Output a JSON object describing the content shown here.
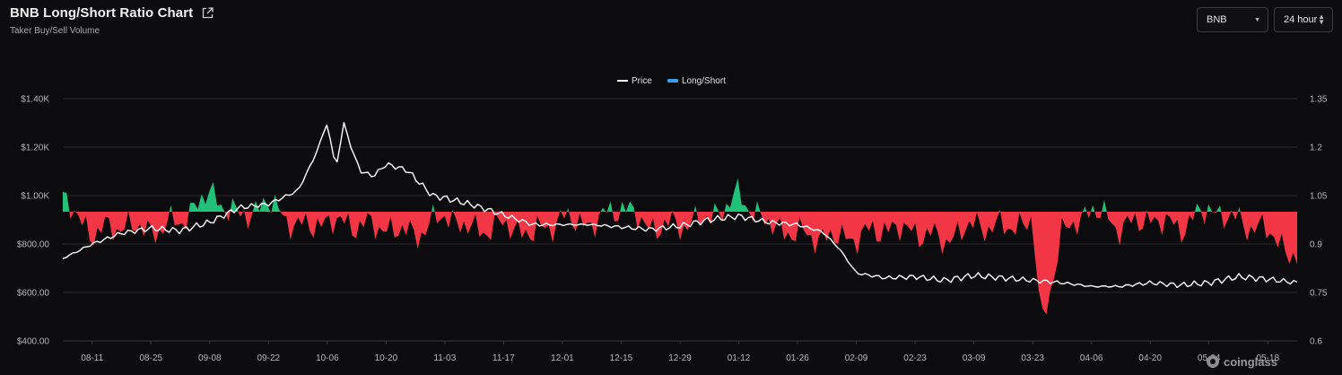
{
  "header": {
    "title": "BNB Long/Short Ratio Chart",
    "subtitle": "Taker Buy/Sell Volume",
    "external_link_icon": "external-link-icon"
  },
  "controls": {
    "symbol": {
      "value": "BNB",
      "icon": "chevron-down-icon"
    },
    "interval": {
      "value": "24 hour",
      "icon": "up-down-arrows-icon"
    }
  },
  "watermark": {
    "text": "coinglass"
  },
  "colors": {
    "background": "#0c0c0e",
    "price_line": "#ffffff",
    "long": "#21c17a",
    "short": "#f23645",
    "legend_ratio": "#3b9ee8",
    "grid": "#2a2a2f"
  },
  "chart_data": {
    "type": "area",
    "legend": [
      {
        "name": "Price",
        "marker": "line",
        "color": "#ffffff"
      },
      {
        "name": "Long/Short",
        "marker": "bar",
        "color": "#3b9ee8"
      }
    ],
    "legend_position": "top-center",
    "x_tick_labels": [
      "08-11",
      "08-25",
      "09-08",
      "09-22",
      "10-06",
      "10-20",
      "11-03",
      "11-17",
      "12-01",
      "12-15",
      "12-29",
      "01-12",
      "01-26",
      "02-09",
      "02-23",
      "03-09",
      "03-23",
      "04-06",
      "04-20",
      "05-04",
      "05-18"
    ],
    "y_left": {
      "label": "",
      "range": [
        400,
        1400
      ],
      "ticks": [
        400,
        600,
        800,
        1000,
        1200,
        1400
      ],
      "tick_labels": [
        "$400.00",
        "$600.00",
        "$800.00",
        "$1.00K",
        "$1.20K",
        "$1.40K"
      ]
    },
    "y_right": {
      "label": "",
      "range": [
        0.6,
        1.35
      ],
      "ticks": [
        0.6,
        0.75,
        0.9,
        1.05,
        1.2,
        1.35
      ],
      "tick_labels": [
        "0.6",
        "0.75",
        "0.9",
        "1.05",
        "1.2",
        "1.35"
      ]
    },
    "ratio_baseline": 1.0,
    "grid": true,
    "series": [
      {
        "name": "Price",
        "axis": "left",
        "dates": [
          "08-04",
          "08-11",
          "08-18",
          "08-25",
          "09-01",
          "09-08",
          "09-15",
          "09-22",
          "09-29",
          "10-03",
          "10-06",
          "10-08",
          "10-10",
          "10-12",
          "10-14",
          "10-17",
          "10-20",
          "10-25",
          "10-31",
          "11-03",
          "11-10",
          "11-17",
          "11-24",
          "12-01",
          "12-08",
          "12-15",
          "12-22",
          "12-29",
          "01-05",
          "01-12",
          "01-19",
          "01-26",
          "02-01",
          "02-05",
          "02-09",
          "02-16",
          "02-23",
          "03-02",
          "03-09",
          "03-16",
          "03-23",
          "03-30",
          "04-06",
          "04-13",
          "04-20",
          "04-27",
          "05-04",
          "05-11",
          "05-18",
          "05-25"
        ],
        "values": [
          740,
          800,
          845,
          865,
          855,
          890,
          950,
          965,
          1020,
          1160,
          1300,
          1110,
          1300,
          1180,
          1100,
          1080,
          1130,
          1105,
          1000,
          990,
          960,
          920,
          880,
          880,
          880,
          870,
          860,
          875,
          900,
          915,
          890,
          880,
          850,
          780,
          680,
          660,
          665,
          650,
          670,
          660,
          650,
          640,
          625,
          625,
          640,
          630,
          640,
          665,
          655,
          640
        ]
      },
      {
        "name": "Long/Short",
        "axis": "right",
        "dates": [
          "08-04",
          "08-11",
          "08-18",
          "08-25",
          "09-01",
          "09-08",
          "09-15",
          "09-22",
          "09-29",
          "10-06",
          "10-13",
          "10-20",
          "10-27",
          "11-03",
          "11-10",
          "11-17",
          "11-24",
          "12-01",
          "12-08",
          "12-15",
          "12-22",
          "12-29",
          "01-05",
          "01-12",
          "01-19",
          "01-26",
          "02-02",
          "02-09",
          "02-16",
          "02-23",
          "03-02",
          "03-09",
          "03-16",
          "03-23",
          "03-25",
          "03-30",
          "04-06",
          "04-13",
          "04-20",
          "04-27",
          "05-04",
          "05-11",
          "05-18",
          "05-25"
        ],
        "values": [
          1.04,
          0.93,
          0.96,
          0.94,
          0.97,
          1.06,
          0.98,
          1.03,
          0.95,
          0.97,
          0.96,
          0.95,
          0.93,
          0.99,
          0.94,
          0.96,
          0.93,
          0.98,
          0.96,
          1.02,
          0.95,
          0.96,
          0.98,
          1.05,
          0.96,
          0.93,
          0.92,
          0.92,
          0.95,
          0.94,
          0.91,
          0.96,
          0.95,
          0.97,
          0.64,
          0.93,
          1.01,
          0.95,
          0.98,
          0.95,
          1.01,
          0.97,
          0.94,
          0.85
        ]
      }
    ]
  }
}
